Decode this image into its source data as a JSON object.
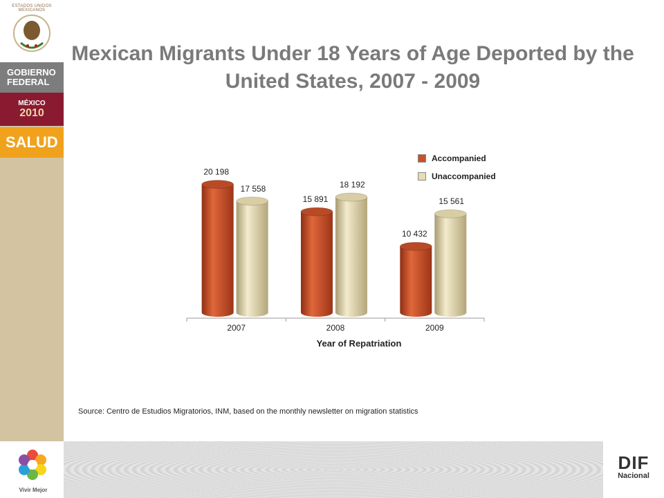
{
  "branding": {
    "seal_text": "ESTADOS UNIDOS MEXICANOS",
    "gobierno": "GOBIERNO",
    "federal": "FEDERAL",
    "mexico": "MÉXICO",
    "year": "2010",
    "salud": "SALUD",
    "vivir": "Vivir Mejor",
    "dif": "DIF",
    "nacional": "Nacional"
  },
  "source": "Source: Centro de Estudios Migratorios, INM, based on the monthly newsletter on migration statistics",
  "colors": {
    "accompanied": "#c8522a",
    "unaccompanied": "#e8dcb4",
    "title": "#7a7a7a"
  },
  "chart_data": {
    "type": "bar",
    "title": "Mexican Migrants Under 18 Years of Age Deported by the United States, 2007 - 2009",
    "xlabel": "Year of Repatriation",
    "ylabel": "",
    "categories": [
      "2007",
      "2008",
      "2009"
    ],
    "series": [
      {
        "name": "Accompanied",
        "values": [
          20198,
          15891,
          10432
        ],
        "labels": [
          "20 198",
          "15 891",
          "10 432"
        ]
      },
      {
        "name": "Unaccompanied",
        "values": [
          17558,
          18192,
          15561
        ],
        "labels": [
          "17 558",
          "18 192",
          "15 561"
        ]
      }
    ],
    "ylim": [
      0,
      22000
    ],
    "grid": false,
    "legend": "top-right"
  }
}
